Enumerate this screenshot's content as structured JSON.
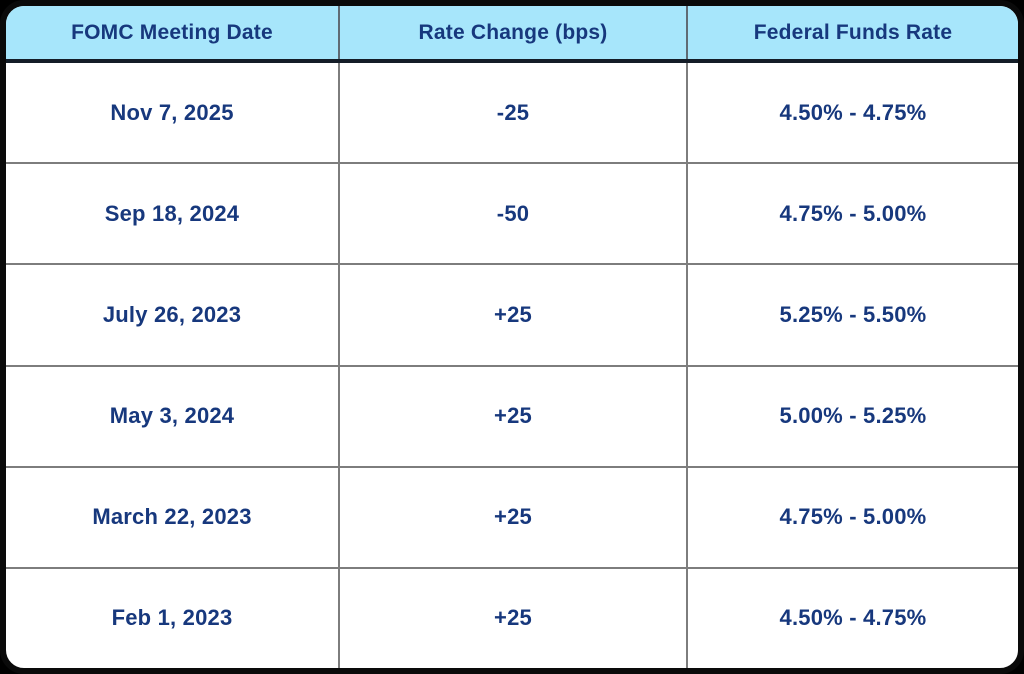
{
  "title": "FOMC Rate Decisions Table",
  "colors": {
    "header_bg": "#A7E6FB",
    "text_navy": "#17387D",
    "grid_line": "#7D7D7D",
    "header_divider": "#141D27",
    "outer_border": "#0A0A0A",
    "row_bg": "#FFFFFF",
    "page_bg": "#000000"
  },
  "chart_data": {
    "type": "table",
    "title": "",
    "columns": [
      "FOMC Meeting Date",
      "Rate Change (bps)",
      "Federal Funds Rate"
    ],
    "rows": [
      [
        "Nov 7, 2025",
        "-25",
        "4.50% - 4.75%"
      ],
      [
        "Sep 18, 2024",
        "-50",
        "4.75% - 5.00%"
      ],
      [
        "July 26, 2023",
        "+25",
        "5.25% - 5.50%"
      ],
      [
        "May 3, 2024",
        "+25",
        "5.00% - 5.25%"
      ],
      [
        "March 22, 2023",
        "+25",
        "4.75% - 5.00%"
      ],
      [
        "Feb 1, 2023",
        "+25",
        "4.50% - 4.75%"
      ]
    ],
    "rate_change_values_bps": [
      -25,
      -50,
      25,
      25,
      25,
      25
    ],
    "layout": {
      "grid": true,
      "header_position": "top",
      "text_align": "center"
    }
  }
}
